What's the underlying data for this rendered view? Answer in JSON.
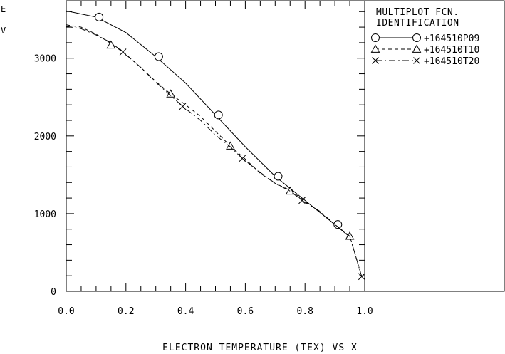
{
  "chart_data": {
    "type": "line",
    "title": "",
    "xlabel": "ELECTRON TEMPERATURE (TEX) VS X",
    "ylabel_lines": [
      "E",
      "V"
    ],
    "xlim": [
      0.0,
      1.0
    ],
    "ylim": [
      0,
      3740
    ],
    "x_ticks": [
      0.0,
      0.2,
      0.4,
      0.6,
      0.8,
      1.0
    ],
    "x_tick_labels": [
      "0.0",
      "0.2",
      "0.4",
      "0.6",
      "0.8",
      "1.0"
    ],
    "y_ticks": [
      0,
      1000,
      2000,
      3000
    ],
    "y_tick_labels": [
      "0",
      "1000",
      "2000",
      "3000"
    ],
    "grid": false,
    "legend": {
      "placement": "right",
      "title_lines": [
        "MULTIPLOT FCN.",
        "IDENTIFICATION"
      ],
      "entries": [
        "+164510P09",
        "+164510T10",
        "+164510T20"
      ]
    },
    "series": [
      {
        "name": "+164510P09",
        "marker": "circle",
        "line": "solid",
        "x": [
          0.0,
          0.1,
          0.2,
          0.3,
          0.4,
          0.5,
          0.6,
          0.7,
          0.8,
          0.9,
          0.95
        ],
        "y": [
          3610,
          3530,
          3330,
          3020,
          2680,
          2270,
          1860,
          1480,
          1170,
          860,
          700
        ],
        "marker_x": [
          0.11,
          0.31,
          0.51,
          0.71,
          0.91
        ],
        "marker_y": [
          3530,
          3020,
          2270,
          1480,
          860
        ]
      },
      {
        "name": "+164510T10",
        "marker": "triangle",
        "line": "dashed",
        "x": [
          0.0,
          0.05,
          0.1,
          0.15,
          0.2,
          0.25,
          0.3,
          0.35,
          0.4,
          0.45,
          0.5,
          0.55,
          0.6,
          0.65,
          0.7,
          0.75,
          0.8,
          0.85,
          0.9,
          0.95,
          0.99
        ],
        "y": [
          3430,
          3400,
          3310,
          3190,
          3050,
          2880,
          2700,
          2540,
          2400,
          2250,
          2060,
          1870,
          1700,
          1520,
          1390,
          1300,
          1160,
          1020,
          860,
          710,
          190
        ],
        "marker_x": [
          0.15,
          0.35,
          0.55,
          0.75,
          0.95
        ],
        "marker_y": [
          3170,
          2540,
          1870,
          1290,
          710
        ]
      },
      {
        "name": "+164510T20",
        "marker": "x",
        "line": "dashdot",
        "x": [
          0.0,
          0.05,
          0.1,
          0.15,
          0.19,
          0.25,
          0.3,
          0.35,
          0.39,
          0.45,
          0.5,
          0.55,
          0.59,
          0.65,
          0.7,
          0.75,
          0.79,
          0.85,
          0.9,
          0.95,
          0.99
        ],
        "y": [
          3410,
          3380,
          3300,
          3200,
          3080,
          2880,
          2690,
          2520,
          2380,
          2200,
          2010,
          1860,
          1710,
          1530,
          1390,
          1290,
          1170,
          1030,
          860,
          710,
          190
        ],
        "marker_x": [
          0.19,
          0.39,
          0.59,
          0.79,
          0.99
        ],
        "marker_y": [
          3080,
          2380,
          1710,
          1170,
          190
        ]
      }
    ]
  }
}
